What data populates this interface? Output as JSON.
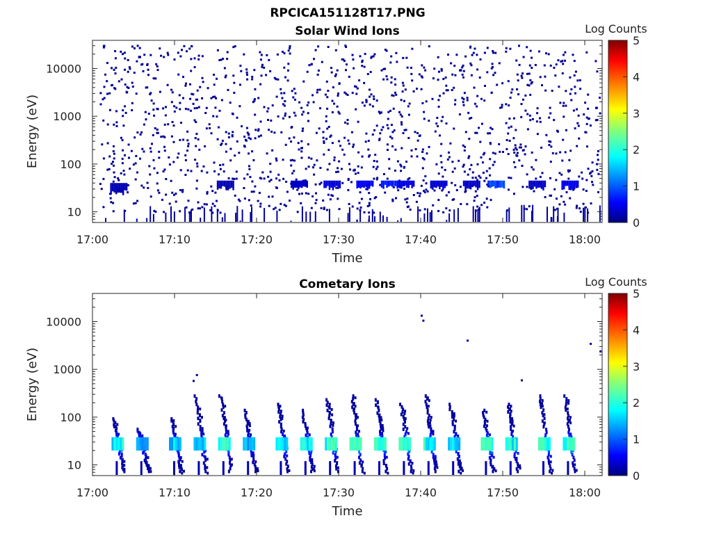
{
  "figure": {
    "title": "RPCICA151128T17.PNG"
  },
  "chart_data": [
    {
      "type": "heatmap",
      "title": "Solar Wind Ions",
      "xlabel": "Time",
      "ylabel": "Energy (eV)",
      "x_ticks": [
        "17:00",
        "17:10",
        "17:20",
        "17:30",
        "17:40",
        "17:50",
        "18:00"
      ],
      "x_range": [
        "17:00",
        "18:02"
      ],
      "y_scale": "log",
      "y_ticks": [
        "10",
        "100",
        "1000",
        "10000"
      ],
      "y_range": [
        5.5,
        45000
      ],
      "colorbar": {
        "label": "Log Counts",
        "ticks": [
          "0",
          "1",
          "2",
          "3",
          "4",
          "5"
        ],
        "range": [
          0,
          5
        ],
        "colormap": "jet"
      },
      "description_of_values": "sparse single-count pixels across 10-20000 eV; band of enhanced counts (log 0.5-1.3) at ~20-50 eV; vertical streaks below 12 eV",
      "bands": [
        {
          "t": "17:03",
          "e_low": 22,
          "e_high": 40,
          "log_counts": 0.3
        },
        {
          "t": "17:16",
          "e_low": 28,
          "e_high": 45,
          "log_counts": 0.3
        },
        {
          "t": "17:25",
          "e_low": 28,
          "e_high": 45,
          "log_counts": 0.4
        },
        {
          "t": "17:29",
          "e_low": 28,
          "e_high": 45,
          "log_counts": 0.5
        },
        {
          "t": "17:33",
          "e_low": 28,
          "e_high": 45,
          "log_counts": 0.7
        },
        {
          "t": "17:36",
          "e_low": 30,
          "e_high": 45,
          "log_counts": 0.9
        },
        {
          "t": "17:38",
          "e_low": 30,
          "e_high": 45,
          "log_counts": 0.6
        },
        {
          "t": "17:42",
          "e_low": 28,
          "e_high": 45,
          "log_counts": 0.5
        },
        {
          "t": "17:46",
          "e_low": 28,
          "e_high": 45,
          "log_counts": 0.4
        },
        {
          "t": "17:49",
          "e_low": 30,
          "e_high": 45,
          "log_counts": 1.1
        },
        {
          "t": "17:54",
          "e_low": 28,
          "e_high": 45,
          "log_counts": 0.4
        },
        {
          "t": "17:58",
          "e_low": 28,
          "e_high": 45,
          "log_counts": 0.6
        }
      ]
    },
    {
      "type": "heatmap",
      "title": "Cometary Ions",
      "xlabel": "Time",
      "ylabel": "Energy (eV)",
      "x_ticks": [
        "17:00",
        "17:10",
        "17:20",
        "17:30",
        "17:40",
        "17:50",
        "18:00"
      ],
      "x_range": [
        "17:00",
        "18:02"
      ],
      "y_scale": "log",
      "y_ticks": [
        "10",
        "100",
        "1000",
        "10000"
      ],
      "y_range": [
        5.5,
        45000
      ],
      "colorbar": {
        "label": "Log Counts",
        "ticks": [
          "0",
          "1",
          "2",
          "3",
          "4",
          "5"
        ],
        "range": [
          0,
          5
        ],
        "colormap": "jet"
      },
      "description_of_values": "periodic bursts roughly every 3-4 minutes: dispersed structures from ~10 eV up to ~300 eV with peak counts (log ~2) near 20-35 eV",
      "bursts": [
        {
          "t": "17:03",
          "e_max": 100,
          "peak_log_counts": 1.4
        },
        {
          "t": "17:06",
          "e_max": 60,
          "peak_log_counts": 1.0
        },
        {
          "t": "17:10",
          "e_max": 100,
          "peak_log_counts": 1.1
        },
        {
          "t": "17:13",
          "e_max": 300,
          "peak_log_counts": 1.0
        },
        {
          "t": "17:16",
          "e_max": 300,
          "peak_log_counts": 1.5
        },
        {
          "t": "17:19",
          "e_max": 150,
          "peak_log_counts": 0.9
        },
        {
          "t": "17:23",
          "e_max": 200,
          "peak_log_counts": 1.4
        },
        {
          "t": "17:26",
          "e_max": 150,
          "peak_log_counts": 1.6
        },
        {
          "t": "17:29",
          "e_max": 250,
          "peak_log_counts": 1.7
        },
        {
          "t": "17:32",
          "e_max": 300,
          "peak_log_counts": 2.0
        },
        {
          "t": "17:35",
          "e_max": 250,
          "peak_log_counts": 1.7
        },
        {
          "t": "17:38",
          "e_max": 200,
          "peak_log_counts": 1.9
        },
        {
          "t": "17:41",
          "e_max": 300,
          "peak_log_counts": 1.6
        },
        {
          "t": "17:44",
          "e_max": 200,
          "peak_log_counts": 1.3
        },
        {
          "t": "17:48",
          "e_max": 150,
          "peak_log_counts": 2.0
        },
        {
          "t": "17:51",
          "e_max": 200,
          "peak_log_counts": 1.5
        },
        {
          "t": "17:55",
          "e_max": 300,
          "peak_log_counts": 1.6
        },
        {
          "t": "17:58",
          "e_max": 300,
          "peak_log_counts": 2.0
        }
      ]
    }
  ]
}
